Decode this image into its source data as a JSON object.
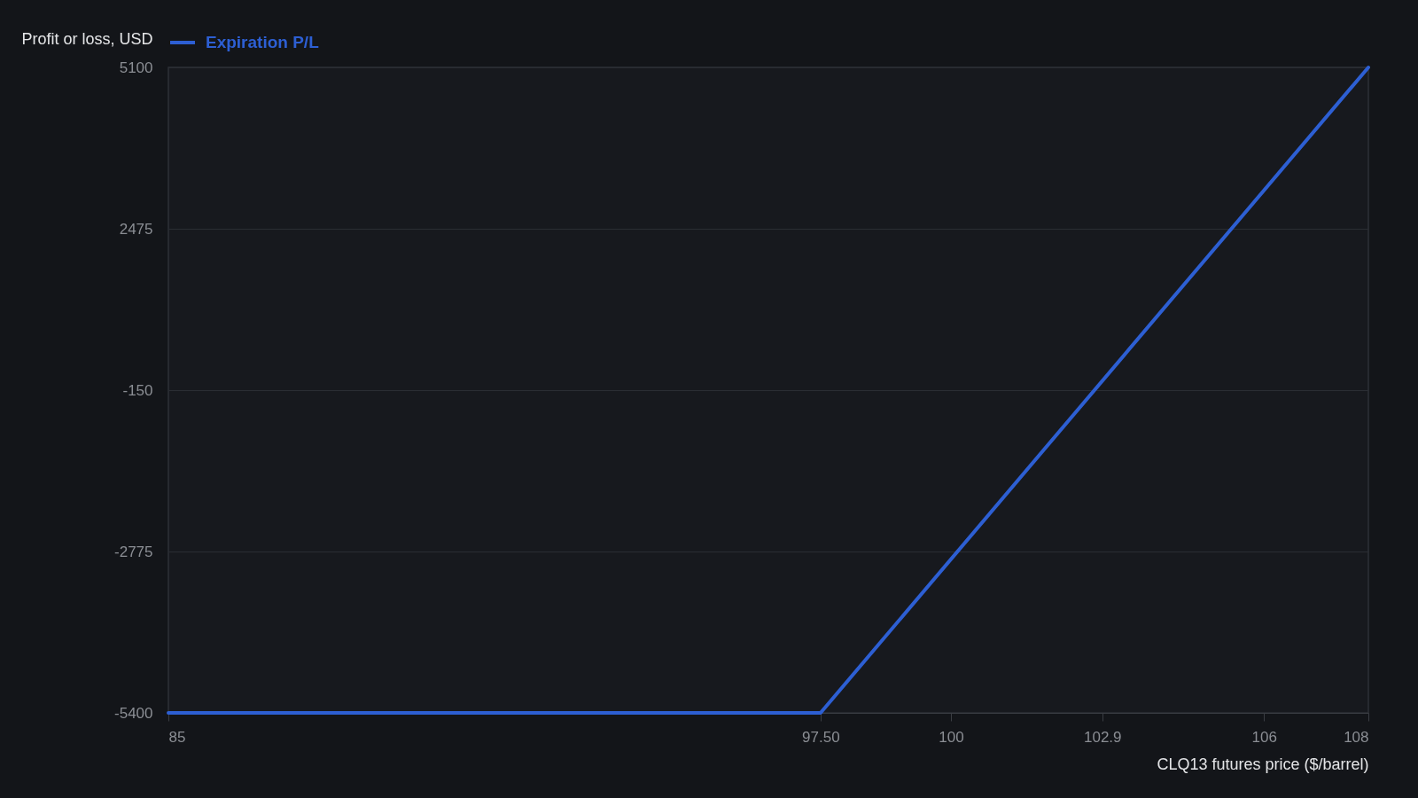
{
  "chart_data": {
    "type": "line",
    "xlabel": "CLQ13 futures price ($/barrel)",
    "ylabel": "Profit or loss, USD",
    "x": [
      85,
      97.5,
      108
    ],
    "series": [
      {
        "name": "Expiration P/L",
        "color": "#2d5fd3",
        "values": [
          -5400,
          -5400,
          5100
        ]
      }
    ],
    "xlim": [
      85,
      108
    ],
    "ylim": [
      -5400,
      5100
    ],
    "xticks": [
      85,
      {
        "value": 97.5,
        "label": "97.50"
      },
      100,
      102.9,
      106,
      108
    ],
    "yticks": [
      -5400,
      -2775,
      -150,
      2475,
      5100
    ],
    "grid": "y",
    "legend": "top left",
    "line_style": "solid"
  }
}
